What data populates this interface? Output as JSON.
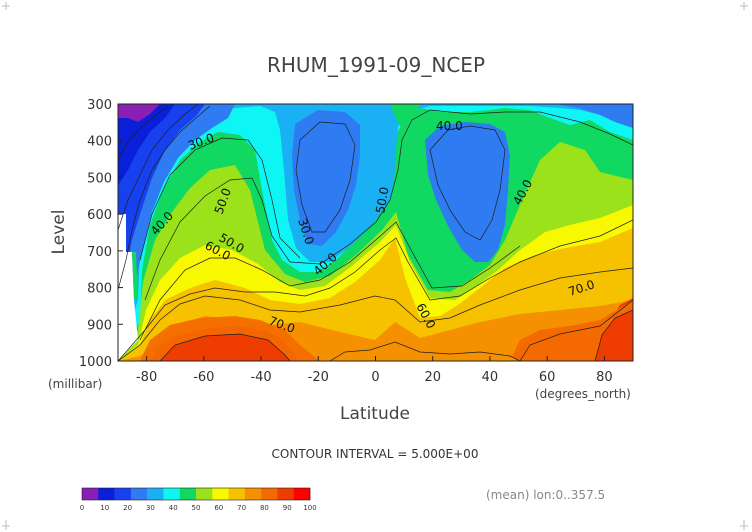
{
  "chart_data": {
    "type": "heatmap",
    "subtype": "filled-contour",
    "title": "RHUM_1991-09_NCEP",
    "xlabel": "Latitude",
    "x_units": "(degrees_north)",
    "ylabel": "Level",
    "y_units": "(millibar)",
    "xlim": [
      -90,
      90
    ],
    "ylim": [
      1000,
      300
    ],
    "x_ticks": [
      -80,
      -60,
      -40,
      -20,
      0,
      20,
      40,
      60,
      80
    ],
    "y_ticks": [
      300,
      400,
      500,
      600,
      700,
      800,
      900,
      1000
    ],
    "x_tick_labels": [
      "-80",
      "-60",
      "-40",
      "-20",
      "0",
      "20",
      "40",
      "60",
      "80"
    ],
    "y_tick_labels": [
      "300",
      "400",
      "500",
      "600",
      "700",
      "800",
      "900",
      "1000"
    ],
    "contour_interval_text": "CONTOUR INTERVAL = 5.000E+00",
    "footnote": "(mean) lon:0..357.5",
    "contour_labels": [
      "30.0",
      "40.0",
      "50.0",
      "40.0",
      "30.0",
      "40.0",
      "50.0",
      "40.0",
      "50.0",
      "60.0",
      "60.0",
      "70.0",
      "70.0"
    ],
    "colorbar": {
      "levels": [
        0,
        10,
        20,
        30,
        40,
        50,
        60,
        70,
        80,
        90,
        100
      ],
      "labels": [
        "0",
        "10",
        "20",
        "30",
        "40",
        "50",
        "60",
        "70",
        "80",
        "90",
        "100"
      ],
      "colors": [
        "#8a1fb5",
        "#0a1fd9",
        "#1740ef",
        "#2f7bf2",
        "#19b0f4",
        "#0ef6f4",
        "#10d860",
        "#9be21a",
        "#f8f800",
        "#f6c200",
        "#f59000",
        "#f46a00",
        "#ef3c00",
        "#ff0000"
      ]
    },
    "grid": false,
    "legend": "bottom-left"
  }
}
